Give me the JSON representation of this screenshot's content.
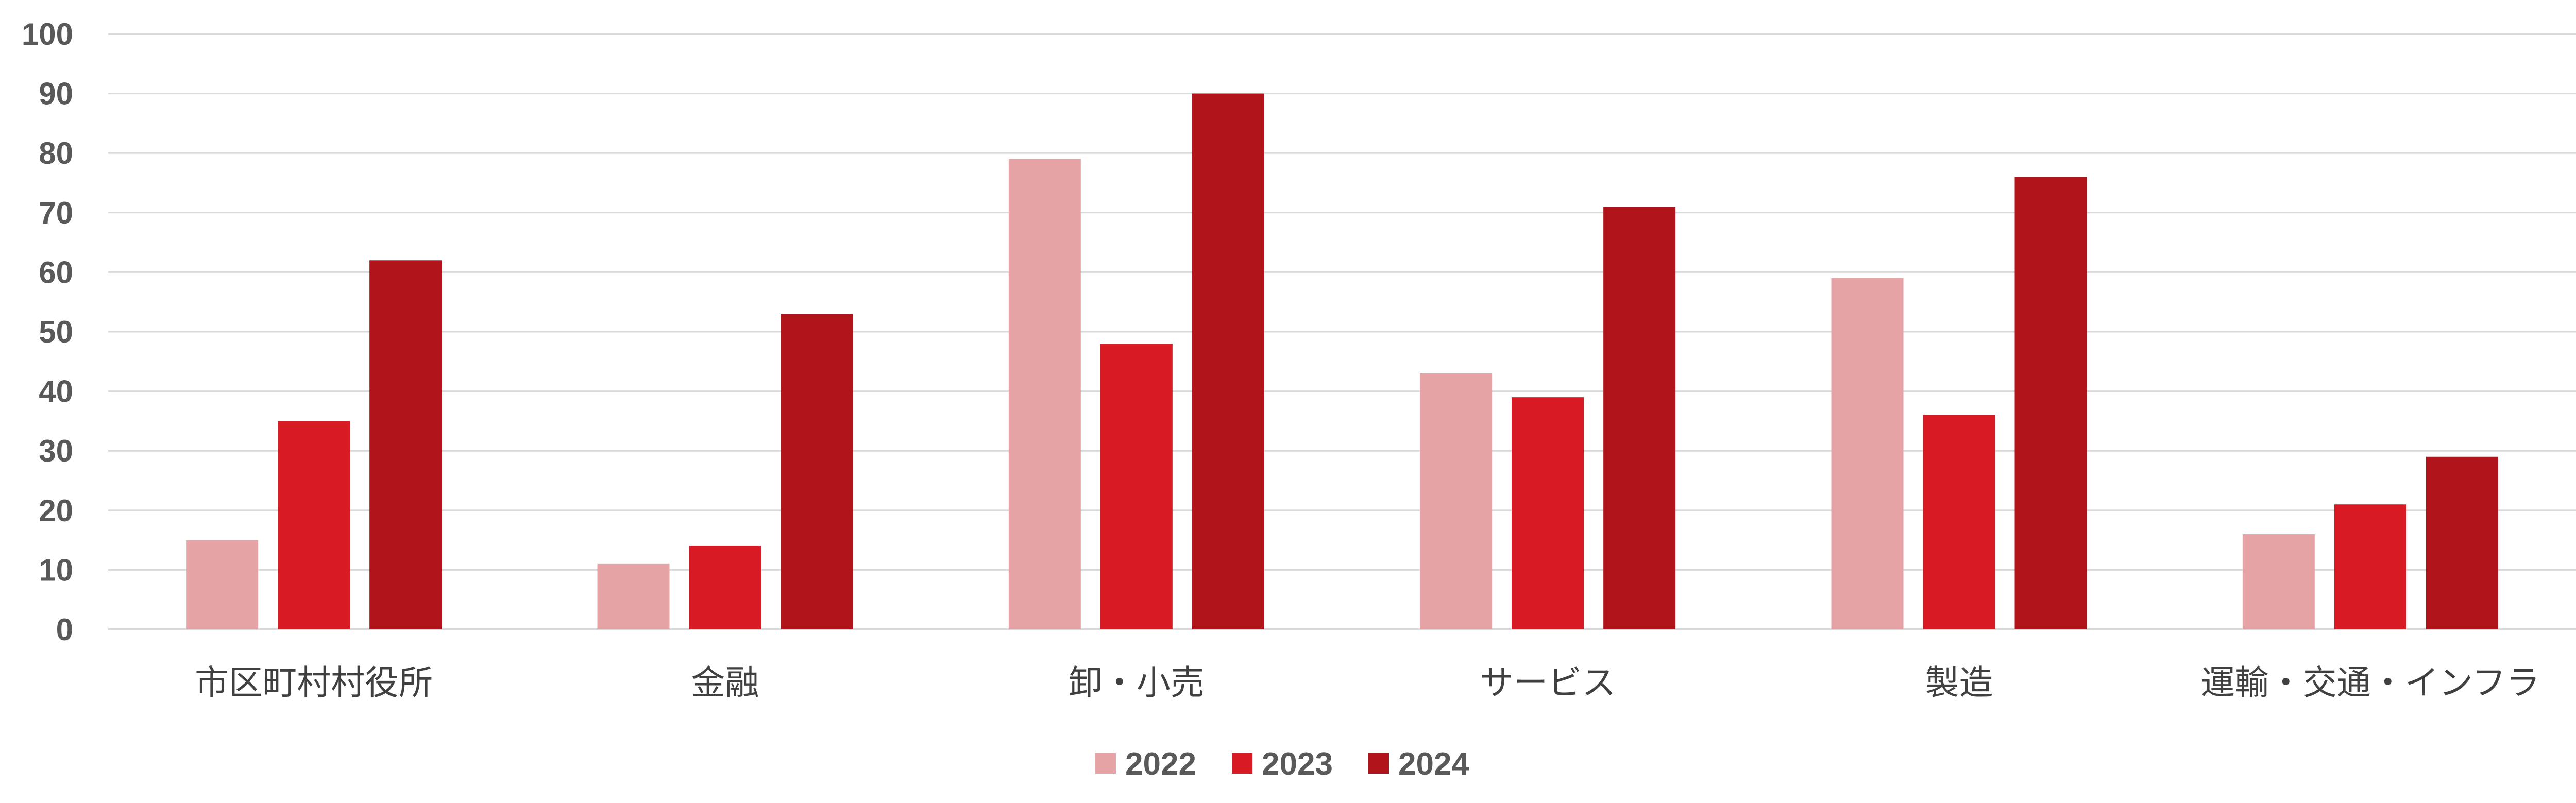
{
  "chart_data": {
    "type": "bar",
    "categories": [
      "市区町村村役所",
      "金融",
      "卸・小売",
      "サービス",
      "製造",
      "運輸・交通・インフラ"
    ],
    "series": [
      {
        "name": "2022",
        "color": "#e6a3a5",
        "values": [
          15,
          11,
          79,
          43,
          59,
          16
        ]
      },
      {
        "name": "2023",
        "color": "#d81a24",
        "values": [
          35,
          14,
          48,
          39,
          36,
          21
        ]
      },
      {
        "name": "2024",
        "color": "#b1141b",
        "values": [
          62,
          53,
          90,
          71,
          76,
          29
        ]
      }
    ],
    "yticks": [
      "0",
      "10",
      "20",
      "30",
      "40",
      "50",
      "60",
      "70",
      "80",
      "90",
      "100"
    ],
    "ylim": [
      0,
      100
    ],
    "grid": true,
    "legend_position": "bottom",
    "title": "",
    "xlabel": "",
    "ylabel": ""
  }
}
